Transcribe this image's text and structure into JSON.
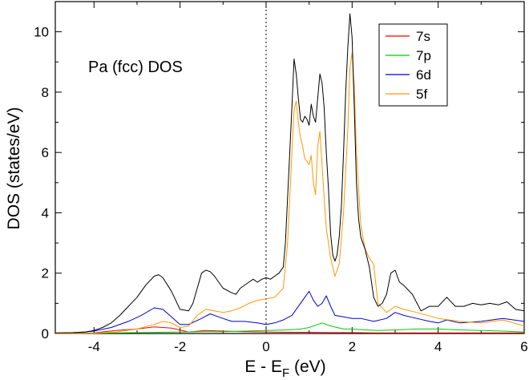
{
  "chart_data": {
    "type": "line",
    "title": "",
    "annotation": "Pa (fcc) DOS",
    "ylabel": "DOS (states/eV)",
    "xlabel_main": "E - E",
    "xlabel_sub": "F",
    "xlabel_unit": " (eV)",
    "xlim": [
      -4.9,
      6
    ],
    "ylim": [
      0,
      11
    ],
    "xticks": [
      -4,
      -2,
      0,
      2,
      4,
      6
    ],
    "yticks": [
      0,
      2,
      4,
      6,
      8,
      10
    ],
    "grid": false,
    "legend_position": "top-right",
    "fermi_line_x": 0,
    "total": {
      "color": "#000000",
      "x": [
        -4.9,
        -4.5,
        -4.2,
        -4.0,
        -3.8,
        -3.6,
        -3.4,
        -3.2,
        -3.0,
        -2.8,
        -2.6,
        -2.5,
        -2.4,
        -2.2,
        -2.0,
        -1.8,
        -1.7,
        -1.6,
        -1.5,
        -1.4,
        -1.3,
        -1.2,
        -1.0,
        -0.8,
        -0.7,
        -0.6,
        -0.4,
        -0.3,
        -0.2,
        -0.1,
        0.0,
        0.1,
        0.2,
        0.3,
        0.4,
        0.45,
        0.5,
        0.55,
        0.6,
        0.65,
        0.7,
        0.75,
        0.8,
        0.85,
        0.9,
        0.95,
        1.0,
        1.05,
        1.1,
        1.15,
        1.2,
        1.25,
        1.3,
        1.35,
        1.4,
        1.45,
        1.5,
        1.55,
        1.6,
        1.65,
        1.7,
        1.75,
        1.8,
        1.85,
        1.9,
        1.95,
        2.0,
        2.05,
        2.1,
        2.15,
        2.2,
        2.25,
        2.3,
        2.4,
        2.5,
        2.6,
        2.7,
        2.8,
        2.9,
        3.0,
        3.1,
        3.2,
        3.4,
        3.6,
        3.8,
        4.0,
        4.2,
        4.4,
        4.6,
        4.8,
        5.0,
        5.2,
        5.4,
        5.5,
        5.6,
        5.8,
        6.0
      ],
      "y": [
        0.02,
        0.03,
        0.05,
        0.1,
        0.2,
        0.35,
        0.6,
        0.9,
        1.2,
        1.6,
        1.9,
        1.95,
        1.85,
        1.4,
        0.8,
        0.75,
        1.0,
        1.5,
        2.0,
        2.1,
        2.05,
        1.9,
        1.5,
        1.35,
        1.3,
        1.5,
        1.7,
        1.8,
        1.7,
        1.8,
        1.85,
        1.8,
        1.9,
        2.0,
        2.2,
        3.0,
        4.5,
        6.0,
        7.5,
        9.1,
        8.6,
        7.8,
        7.1,
        7.0,
        7.2,
        7.1,
        6.9,
        7.6,
        7.2,
        7.0,
        7.8,
        8.6,
        8.3,
        7.5,
        6.0,
        4.8,
        3.3,
        2.6,
        2.4,
        2.6,
        3.2,
        4.2,
        6.0,
        8.0,
        9.5,
        10.6,
        9.8,
        7.5,
        5.0,
        3.8,
        3.2,
        3.0,
        2.8,
        2.2,
        1.2,
        0.9,
        1.0,
        1.3,
        2.0,
        2.1,
        1.7,
        1.6,
        1.3,
        0.75,
        0.9,
        0.9,
        1.2,
        0.9,
        0.9,
        1.0,
        0.95,
        1.0,
        0.95,
        1.0,
        1.05,
        0.8,
        0.75
      ]
    },
    "series": [
      {
        "name": "7s",
        "color": "#ff0000",
        "x": [
          -4.9,
          -4.0,
          -3.5,
          -3.0,
          -2.6,
          -2.2,
          -1.8,
          -1.4,
          -1.0,
          -0.5,
          0.0,
          0.5,
          1.0,
          1.5,
          2.0,
          2.5,
          3.0,
          3.5,
          4.0,
          5.0,
          6.0
        ],
        "y": [
          0.0,
          0.02,
          0.1,
          0.15,
          0.22,
          0.18,
          0.05,
          0.1,
          0.08,
          0.06,
          0.05,
          0.04,
          0.04,
          0.03,
          0.03,
          0.02,
          0.02,
          0.02,
          0.02,
          0.02,
          0.02
        ]
      },
      {
        "name": "7p",
        "color": "#00cc00",
        "x": [
          -4.9,
          -4.0,
          -3.0,
          -2.0,
          -1.5,
          -1.0,
          -0.5,
          0.0,
          0.5,
          0.8,
          1.0,
          1.2,
          1.3,
          1.5,
          1.8,
          2.0,
          2.3,
          2.6,
          3.0,
          3.5,
          4.0,
          4.5,
          5.0,
          5.5,
          6.0
        ],
        "y": [
          0.0,
          0.01,
          0.03,
          0.05,
          0.06,
          0.06,
          0.08,
          0.1,
          0.12,
          0.15,
          0.2,
          0.3,
          0.35,
          0.25,
          0.15,
          0.15,
          0.12,
          0.1,
          0.12,
          0.15,
          0.15,
          0.12,
          0.1,
          0.08,
          0.05
        ]
      },
      {
        "name": "6d",
        "color": "#0000cc",
        "x": [
          -4.9,
          -4.5,
          -4.0,
          -3.6,
          -3.2,
          -2.9,
          -2.6,
          -2.4,
          -2.2,
          -2.0,
          -1.8,
          -1.5,
          -1.3,
          -1.1,
          -0.8,
          -0.5,
          -0.2,
          0.0,
          0.2,
          0.4,
          0.6,
          0.8,
          1.0,
          1.1,
          1.2,
          1.3,
          1.4,
          1.5,
          1.6,
          1.8,
          2.0,
          2.2,
          2.5,
          2.8,
          3.0,
          3.2,
          3.5,
          3.8,
          4.0,
          4.2,
          4.5,
          5.0,
          5.5,
          6.0
        ],
        "y": [
          0.0,
          0.01,
          0.08,
          0.2,
          0.4,
          0.6,
          0.85,
          0.8,
          0.55,
          0.3,
          0.3,
          0.5,
          0.65,
          0.55,
          0.4,
          0.4,
          0.35,
          0.3,
          0.35,
          0.45,
          0.6,
          1.0,
          1.4,
          1.1,
          0.9,
          1.0,
          1.25,
          0.9,
          0.6,
          0.55,
          0.5,
          0.5,
          0.4,
          0.5,
          0.7,
          0.6,
          0.5,
          0.4,
          0.35,
          0.45,
          0.35,
          0.4,
          0.5,
          0.4
        ]
      },
      {
        "name": "5f",
        "color": "#ff9900",
        "x": [
          -4.9,
          -4.0,
          -3.5,
          -3.0,
          -2.6,
          -2.4,
          -2.2,
          -2.0,
          -1.8,
          -1.6,
          -1.4,
          -1.2,
          -1.0,
          -0.8,
          -0.6,
          -0.4,
          -0.2,
          0.0,
          0.2,
          0.4,
          0.5,
          0.6,
          0.65,
          0.7,
          0.75,
          0.8,
          0.85,
          0.9,
          1.0,
          1.05,
          1.1,
          1.15,
          1.2,
          1.25,
          1.3,
          1.35,
          1.4,
          1.5,
          1.6,
          1.7,
          1.8,
          1.9,
          1.95,
          2.0,
          2.05,
          2.1,
          2.2,
          2.3,
          2.4,
          2.5,
          2.6,
          2.8,
          3.0,
          3.2,
          3.5,
          4.0,
          4.5,
          5.0,
          5.5,
          6.0
        ],
        "y": [
          0.0,
          0.01,
          0.05,
          0.15,
          0.3,
          0.4,
          0.35,
          0.2,
          0.25,
          0.6,
          0.8,
          0.75,
          0.7,
          0.75,
          0.85,
          1.0,
          1.1,
          1.15,
          1.2,
          1.5,
          3.0,
          6.0,
          7.4,
          7.7,
          7.0,
          6.5,
          6.2,
          5.8,
          5.6,
          5.9,
          5.0,
          4.6,
          6.2,
          6.7,
          5.6,
          4.5,
          3.5,
          2.5,
          1.9,
          2.3,
          4.0,
          6.8,
          8.8,
          9.3,
          8.2,
          6.0,
          3.6,
          2.8,
          2.5,
          2.3,
          1.0,
          0.7,
          0.9,
          0.8,
          0.7,
          0.5,
          0.4,
          0.35,
          0.45,
          0.25
        ]
      }
    ]
  }
}
